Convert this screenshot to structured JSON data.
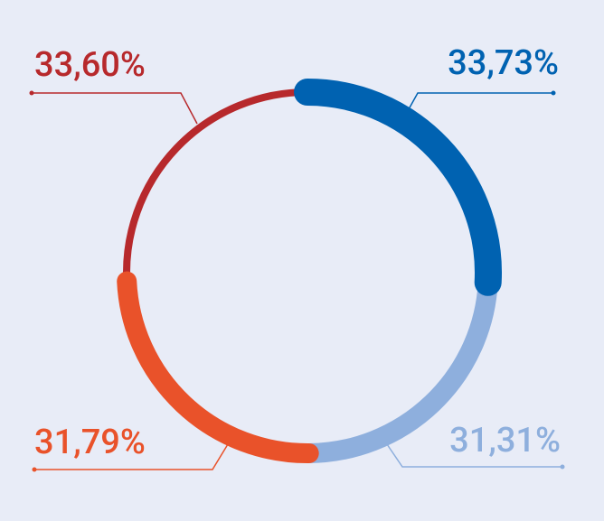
{
  "chart_data": {
    "type": "donut",
    "values": [
      33.73,
      31.31,
      31.79,
      33.6
    ],
    "value_labels": [
      "33,73%",
      "31,31%",
      "31,79%",
      "33,60%"
    ],
    "colors": [
      "#0062b1",
      "#8eafdd",
      "#e9522a",
      "#b7292c"
    ]
  }
}
